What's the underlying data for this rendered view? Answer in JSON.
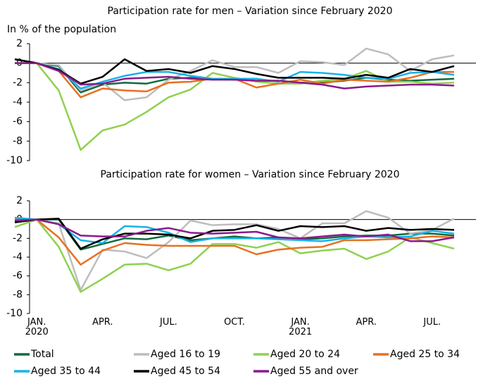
{
  "chart_data": [
    {
      "type": "line",
      "title": "Participation rate for men – Variation since February 2020",
      "y_label": "In % of the population",
      "categories": [
        null,
        "JAN.\n2020",
        null,
        null,
        "APR.",
        null,
        null,
        "JUL.",
        null,
        null,
        "OCT.",
        null,
        null,
        "JAN.\n2021",
        null,
        null,
        "APR.",
        null,
        null,
        "JUL.",
        null
      ],
      "ylim": [
        -10,
        2
      ],
      "yticks": [
        2,
        0,
        -2,
        -4,
        -6,
        -8,
        -10
      ],
      "series": [
        {
          "name": "Total",
          "color": "#0f6b3d",
          "values": [
            0.4,
            0,
            -0.3,
            -3.0,
            -2.2,
            -2.0,
            -2.1,
            -1.6,
            -1.5,
            -1.6,
            -1.7,
            -1.8,
            -1.8,
            -2.0,
            -2.0,
            -1.8,
            -1.5,
            -1.7,
            -1.8,
            -1.7,
            -1.6
          ]
        },
        {
          "name": "Aged 16 to 19",
          "color": "#bdbdbd",
          "values": [
            0,
            0,
            -0.2,
            -2.8,
            -2.0,
            -3.8,
            -3.5,
            -1.7,
            -0.8,
            0.3,
            -0.4,
            -0.4,
            -1.0,
            0.2,
            0.1,
            -0.2,
            1.5,
            0.9,
            -0.8,
            0.4,
            0.8
          ]
        },
        {
          "name": "Aged 20 to 24",
          "color": "#8fd14f",
          "values": [
            0,
            0,
            -2.8,
            -8.9,
            -6.9,
            -6.3,
            -5.0,
            -3.5,
            -2.7,
            -1.0,
            -1.5,
            -1.9,
            -2.1,
            -2.1,
            -1.8,
            -1.6,
            -0.8,
            -1.9,
            -1.9,
            -2.1,
            -2.0
          ]
        },
        {
          "name": "Aged 25 to 34",
          "color": "#e8701f",
          "values": [
            0,
            0,
            -0.8,
            -3.5,
            -2.6,
            -2.8,
            -2.9,
            -2.0,
            -1.9,
            -1.6,
            -1.6,
            -2.5,
            -2.1,
            -1.7,
            -2.1,
            -1.7,
            -1.8,
            -1.9,
            -1.5,
            -0.9,
            -0.9
          ]
        },
        {
          "name": "Aged 35 to 44",
          "color": "#19b2e8",
          "values": [
            0,
            0,
            -0.6,
            -2.6,
            -1.9,
            -1.3,
            -0.9,
            -0.9,
            -1.3,
            -1.6,
            -1.6,
            -1.6,
            -1.9,
            -0.9,
            -1.0,
            -1.2,
            -1.5,
            -1.6,
            -1.0,
            -0.9,
            -1.2
          ]
        },
        {
          "name": "Aged 45 to 54",
          "color": "#000000",
          "values": [
            0.4,
            0,
            -0.7,
            -2.1,
            -1.4,
            0.4,
            -0.8,
            -0.6,
            -1.0,
            -0.3,
            -0.6,
            -1.1,
            -1.5,
            -1.5,
            -1.5,
            -1.6,
            -1.2,
            -1.5,
            -0.6,
            -0.9,
            -0.3
          ]
        },
        {
          "name": "Aged 55 and over",
          "color": "#8b1a8b",
          "values": [
            0,
            0,
            -0.8,
            -2.2,
            -2.1,
            -1.6,
            -1.5,
            -1.4,
            -1.6,
            -1.7,
            -1.7,
            -1.8,
            -1.8,
            -2.0,
            -2.2,
            -2.6,
            -2.4,
            -2.3,
            -2.2,
            -2.2,
            -2.3
          ]
        }
      ]
    },
    {
      "type": "line",
      "title": "Participation rate for women – Variation since February 2020",
      "categories": [
        null,
        "JAN.\n2020",
        null,
        null,
        "APR.",
        null,
        null,
        "JUL.",
        null,
        null,
        "OCT.",
        null,
        null,
        "JAN.\n2021",
        null,
        null,
        "APR.",
        null,
        null,
        "JUL.",
        null
      ],
      "ylim": [
        -10,
        2
      ],
      "yticks": [
        2,
        0,
        -2,
        -4,
        -6,
        -8,
        -10
      ],
      "series": [
        {
          "name": "Total",
          "color": "#0f6b3d",
          "values": [
            -0.3,
            0,
            0,
            -3.2,
            -2.6,
            -2.0,
            -2.1,
            -1.7,
            -2.2,
            -2.0,
            -1.8,
            -2.0,
            -1.9,
            -2.1,
            -2.0,
            -1.8,
            -1.7,
            -1.7,
            -1.5,
            -1.5,
            -1.7
          ]
        },
        {
          "name": "Aged 16 to 19",
          "color": "#bdbdbd",
          "values": [
            0,
            0,
            -0.4,
            -7.5,
            -3.2,
            -3.4,
            -4.1,
            -2.4,
            -0.1,
            -0.6,
            -0.5,
            -0.5,
            -1.0,
            -2.0,
            -0.4,
            -0.4,
            0.9,
            0.2,
            -1.5,
            -1.1,
            0.1
          ]
        },
        {
          "name": "Aged 20 to 24",
          "color": "#8fd14f",
          "values": [
            -0.8,
            0,
            -2.9,
            -7.7,
            -6.3,
            -4.8,
            -4.7,
            -5.4,
            -4.7,
            -2.6,
            -2.6,
            -3.0,
            -2.4,
            -3.6,
            -3.3,
            -3.1,
            -4.2,
            -3.4,
            -1.9,
            -2.5,
            -3.1
          ]
        },
        {
          "name": "Aged 25 to 34",
          "color": "#e8701f",
          "values": [
            0,
            0,
            -1.9,
            -4.8,
            -3.3,
            -2.5,
            -2.7,
            -2.8,
            -2.8,
            -2.8,
            -2.8,
            -3.7,
            -3.2,
            -3.0,
            -2.9,
            -2.2,
            -2.2,
            -2.1,
            -2.0,
            -1.8,
            -1.9
          ]
        },
        {
          "name": "Aged 35 to 44",
          "color": "#19b2e8",
          "values": [
            0.2,
            0,
            -0.5,
            -2.2,
            -2.5,
            -0.7,
            -0.8,
            -1.4,
            -2.4,
            -2.0,
            -2.0,
            -2.0,
            -2.1,
            -2.2,
            -2.3,
            -2.0,
            -1.8,
            -1.9,
            -1.8,
            -1.2,
            -1.5
          ]
        },
        {
          "name": "Aged 45 to 54",
          "color": "#000000",
          "values": [
            -0.3,
            0,
            0.1,
            -3.1,
            -2.1,
            -1.5,
            -1.5,
            -1.6,
            -2.0,
            -1.2,
            -1.1,
            -0.6,
            -1.2,
            -0.7,
            -0.8,
            -0.7,
            -1.2,
            -0.9,
            -1.1,
            -1.0,
            -1.1
          ]
        },
        {
          "name": "Aged 55 and over",
          "color": "#8b1a8b",
          "values": [
            -0.1,
            0,
            -0.5,
            -1.7,
            -1.8,
            -1.8,
            -1.2,
            -0.9,
            -1.4,
            -1.5,
            -1.4,
            -1.3,
            -1.9,
            -2.0,
            -1.8,
            -1.6,
            -1.8,
            -1.6,
            -2.3,
            -2.3,
            -1.9
          ]
        }
      ]
    }
  ]
}
